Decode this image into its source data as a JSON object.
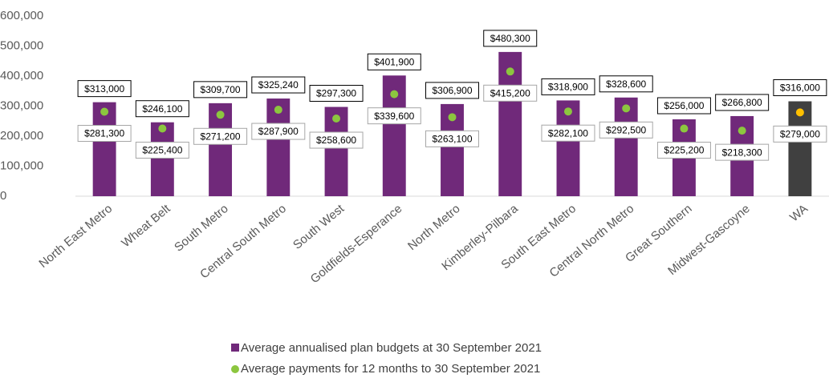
{
  "chart_data": {
    "type": "bar",
    "categories": [
      "North East Metro",
      "Wheat Belt",
      "South Metro",
      "Central South Metro",
      "South West",
      "Goldfields-Esperance",
      "North Metro",
      "Kimberley-Pilbara",
      "South East Metro",
      "Central North Metro",
      "Great Southern",
      "Midwest-Gascoyne",
      "WA"
    ],
    "series": [
      {
        "name": "Average annualised plan budgets at 30 September 2021",
        "color": "#70297a",
        "colors": [
          "#70297a",
          "#70297a",
          "#70297a",
          "#70297a",
          "#70297a",
          "#70297a",
          "#70297a",
          "#70297a",
          "#70297a",
          "#70297a",
          "#70297a",
          "#70297a",
          "#404040"
        ],
        "values": [
          313000,
          246100,
          309700,
          325240,
          297300,
          401900,
          306900,
          480300,
          318900,
          328600,
          256000,
          266800,
          316000
        ],
        "value_labels": [
          "$313,000",
          "$246,100",
          "$309,700",
          "$325,240",
          "$297,300",
          "$401,900",
          "$306,900",
          "$480,300",
          "$318,900",
          "$328,600",
          "$256,000",
          "$266,800",
          "$316,000"
        ]
      },
      {
        "name": "Average payments for 12 months to 30 September 2021",
        "color": "#8cc63f",
        "colors": [
          "#8cc63f",
          "#8cc63f",
          "#8cc63f",
          "#8cc63f",
          "#8cc63f",
          "#8cc63f",
          "#8cc63f",
          "#8cc63f",
          "#8cc63f",
          "#8cc63f",
          "#8cc63f",
          "#8cc63f",
          "#ffc000"
        ],
        "values": [
          281300,
          225400,
          271200,
          287900,
          258600,
          339600,
          263100,
          415200,
          282100,
          292500,
          225200,
          218300,
          279000
        ],
        "value_labels": [
          "$281,300",
          "$225,400",
          "$271,200",
          "$287,900",
          "$258,600",
          "$339,600",
          "$263,100",
          "$415,200",
          "$282,100",
          "$292,500",
          "$225,200",
          "$218,300",
          "$279,000"
        ]
      }
    ],
    "ylim": [
      0,
      600000
    ],
    "yticks": [
      0,
      {
        "value": 100000,
        "label": "100,000"
      },
      {
        "value": 200000,
        "label": "200,000"
      },
      {
        "value": 300000,
        "label": "300,000"
      },
      {
        "value": 400000,
        "label": "400,000"
      },
      {
        "value": 500000,
        "label": "500,000"
      },
      {
        "value": 600000,
        "label": "600,000"
      }
    ],
    "grid": false
  }
}
